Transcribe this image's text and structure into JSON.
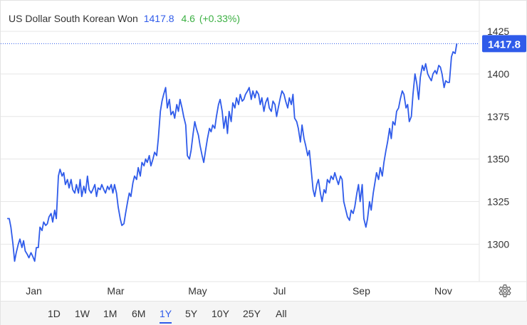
{
  "header": {
    "title": "US Dollar South Korean Won",
    "price": "1417.8",
    "change": "4.6",
    "change_pct": "(+0.33%)"
  },
  "colors": {
    "line": "#2f5bea",
    "positive": "#3cb043",
    "grid": "#e6e6e6",
    "axis_text": "#333333",
    "price_badge": "#2f5bea"
  },
  "range_buttons": [
    {
      "label": "1D"
    },
    {
      "label": "1W"
    },
    {
      "label": "1M"
    },
    {
      "label": "6M"
    },
    {
      "label": "1Y",
      "active": true
    },
    {
      "label": "5Y"
    },
    {
      "label": "10Y"
    },
    {
      "label": "25Y"
    },
    {
      "label": "All"
    }
  ],
  "settings_icon": "gear-icon",
  "chart_data": {
    "type": "line",
    "title": "",
    "xlabel": "",
    "ylabel": "",
    "y_ticks": [
      1300,
      1325,
      1350,
      1375,
      1400,
      1425
    ],
    "x_tick_labels": [
      "Jan",
      "Mar",
      "May",
      "Jul",
      "Sep",
      "Nov"
    ],
    "x_tick_month_index": [
      0.67,
      2.67,
      4.67,
      6.67,
      8.67,
      10.67
    ],
    "ylim": [
      1278,
      1443
    ],
    "xlim_month_index": [
      0.0,
      11.55
    ],
    "grid": "horizontal",
    "last_value_label": "1417.8",
    "last_value": 1417.8,
    "series": [
      {
        "values": [
          [
            0.02,
            1315
          ],
          [
            0.07,
            1315
          ],
          [
            0.11,
            1310
          ],
          [
            0.16,
            1300
          ],
          [
            0.2,
            1290
          ],
          [
            0.24,
            1295
          ],
          [
            0.29,
            1300
          ],
          [
            0.33,
            1303
          ],
          [
            0.38,
            1298
          ],
          [
            0.42,
            1302
          ],
          [
            0.46,
            1296
          ],
          [
            0.51,
            1294
          ],
          [
            0.55,
            1292
          ],
          [
            0.6,
            1295
          ],
          [
            0.64,
            1293
          ],
          [
            0.69,
            1290
          ],
          [
            0.73,
            1298
          ],
          [
            0.78,
            1298
          ],
          [
            0.82,
            1310
          ],
          [
            0.87,
            1308
          ],
          [
            0.91,
            1313
          ],
          [
            0.96,
            1311
          ],
          [
            1.0,
            1312
          ],
          [
            1.04,
            1316
          ],
          [
            1.09,
            1318
          ],
          [
            1.13,
            1313
          ],
          [
            1.18,
            1320
          ],
          [
            1.22,
            1315
          ],
          [
            1.27,
            1340
          ],
          [
            1.31,
            1344
          ],
          [
            1.36,
            1340
          ],
          [
            1.4,
            1342
          ],
          [
            1.44,
            1335
          ],
          [
            1.49,
            1338
          ],
          [
            1.53,
            1333
          ],
          [
            1.58,
            1338
          ],
          [
            1.62,
            1332
          ],
          [
            1.67,
            1330
          ],
          [
            1.71,
            1335
          ],
          [
            1.76,
            1330
          ],
          [
            1.8,
            1338
          ],
          [
            1.84,
            1328
          ],
          [
            1.89,
            1334
          ],
          [
            1.93,
            1330
          ],
          [
            1.98,
            1340
          ],
          [
            2.02,
            1332
          ],
          [
            2.07,
            1330
          ],
          [
            2.11,
            1332
          ],
          [
            2.16,
            1335
          ],
          [
            2.2,
            1328
          ],
          [
            2.24,
            1333
          ],
          [
            2.29,
            1332
          ],
          [
            2.33,
            1335
          ],
          [
            2.38,
            1332
          ],
          [
            2.42,
            1330
          ],
          [
            2.47,
            1334
          ],
          [
            2.51,
            1332
          ],
          [
            2.56,
            1335
          ],
          [
            2.6,
            1330
          ],
          [
            2.64,
            1335
          ],
          [
            2.69,
            1330
          ],
          [
            2.73,
            1322
          ],
          [
            2.78,
            1315
          ],
          [
            2.82,
            1311
          ],
          [
            2.87,
            1312
          ],
          [
            2.91,
            1318
          ],
          [
            2.96,
            1325
          ],
          [
            3.0,
            1330
          ],
          [
            3.04,
            1328
          ],
          [
            3.09,
            1336
          ],
          [
            3.13,
            1340
          ],
          [
            3.18,
            1338
          ],
          [
            3.22,
            1345
          ],
          [
            3.27,
            1340
          ],
          [
            3.31,
            1348
          ],
          [
            3.36,
            1346
          ],
          [
            3.4,
            1350
          ],
          [
            3.44,
            1348
          ],
          [
            3.49,
            1352
          ],
          [
            3.53,
            1346
          ],
          [
            3.58,
            1350
          ],
          [
            3.62,
            1354
          ],
          [
            3.67,
            1352
          ],
          [
            3.71,
            1362
          ],
          [
            3.76,
            1378
          ],
          [
            3.8,
            1384
          ],
          [
            3.84,
            1388
          ],
          [
            3.89,
            1392
          ],
          [
            3.93,
            1380
          ],
          [
            3.98,
            1385
          ],
          [
            4.02,
            1376
          ],
          [
            4.07,
            1378
          ],
          [
            4.11,
            1374
          ],
          [
            4.16,
            1382
          ],
          [
            4.2,
            1378
          ],
          [
            4.24,
            1385
          ],
          [
            4.29,
            1380
          ],
          [
            4.33,
            1375
          ],
          [
            4.38,
            1370
          ],
          [
            4.42,
            1352
          ],
          [
            4.47,
            1350
          ],
          [
            4.51,
            1355
          ],
          [
            4.56,
            1365
          ],
          [
            4.6,
            1372
          ],
          [
            4.64,
            1368
          ],
          [
            4.69,
            1364
          ],
          [
            4.73,
            1358
          ],
          [
            4.78,
            1352
          ],
          [
            4.82,
            1348
          ],
          [
            4.87,
            1356
          ],
          [
            4.91,
            1362
          ],
          [
            4.96,
            1368
          ],
          [
            5.0,
            1366
          ],
          [
            5.04,
            1370
          ],
          [
            5.09,
            1368
          ],
          [
            5.13,
            1375
          ],
          [
            5.18,
            1382
          ],
          [
            5.22,
            1385
          ],
          [
            5.27,
            1378
          ],
          [
            5.31,
            1368
          ],
          [
            5.36,
            1375
          ],
          [
            5.4,
            1365
          ],
          [
            5.44,
            1378
          ],
          [
            5.49,
            1372
          ],
          [
            5.53,
            1383
          ],
          [
            5.58,
            1380
          ],
          [
            5.62,
            1386
          ],
          [
            5.67,
            1382
          ],
          [
            5.71,
            1388
          ],
          [
            5.76,
            1384
          ],
          [
            5.8,
            1385
          ],
          [
            5.84,
            1388
          ],
          [
            5.89,
            1390
          ],
          [
            5.93,
            1392
          ],
          [
            5.98,
            1385
          ],
          [
            6.02,
            1390
          ],
          [
            6.07,
            1386
          ],
          [
            6.11,
            1390
          ],
          [
            6.16,
            1388
          ],
          [
            6.2,
            1382
          ],
          [
            6.24,
            1386
          ],
          [
            6.29,
            1378
          ],
          [
            6.33,
            1383
          ],
          [
            6.38,
            1386
          ],
          [
            6.42,
            1380
          ],
          [
            6.47,
            1378
          ],
          [
            6.51,
            1384
          ],
          [
            6.56,
            1382
          ],
          [
            6.6,
            1375
          ],
          [
            6.64,
            1380
          ],
          [
            6.69,
            1386
          ],
          [
            6.73,
            1390
          ],
          [
            6.78,
            1388
          ],
          [
            6.82,
            1384
          ],
          [
            6.87,
            1380
          ],
          [
            6.91,
            1386
          ],
          [
            6.96,
            1382
          ],
          [
            7.0,
            1388
          ],
          [
            7.04,
            1374
          ],
          [
            7.09,
            1372
          ],
          [
            7.13,
            1368
          ],
          [
            7.18,
            1360
          ],
          [
            7.22,
            1370
          ],
          [
            7.27,
            1362
          ],
          [
            7.31,
            1358
          ],
          [
            7.36,
            1352
          ],
          [
            7.4,
            1355
          ],
          [
            7.44,
            1345
          ],
          [
            7.49,
            1332
          ],
          [
            7.53,
            1328
          ],
          [
            7.58,
            1335
          ],
          [
            7.62,
            1338
          ],
          [
            7.67,
            1330
          ],
          [
            7.71,
            1325
          ],
          [
            7.76,
            1332
          ],
          [
            7.8,
            1330
          ],
          [
            7.84,
            1338
          ],
          [
            7.89,
            1336
          ],
          [
            7.93,
            1340
          ],
          [
            7.98,
            1338
          ],
          [
            8.02,
            1342
          ],
          [
            8.07,
            1338
          ],
          [
            8.11,
            1335
          ],
          [
            8.16,
            1340
          ],
          [
            8.2,
            1338
          ],
          [
            8.24,
            1325
          ],
          [
            8.29,
            1320
          ],
          [
            8.33,
            1316
          ],
          [
            8.38,
            1314
          ],
          [
            8.42,
            1320
          ],
          [
            8.47,
            1318
          ],
          [
            8.51,
            1322
          ],
          [
            8.56,
            1330
          ],
          [
            8.6,
            1335
          ],
          [
            8.64,
            1325
          ],
          [
            8.69,
            1335
          ],
          [
            8.73,
            1315
          ],
          [
            8.78,
            1310
          ],
          [
            8.82,
            1315
          ],
          [
            8.87,
            1325
          ],
          [
            8.91,
            1320
          ],
          [
            8.96,
            1330
          ],
          [
            9.0,
            1336
          ],
          [
            9.04,
            1342
          ],
          [
            9.09,
            1338
          ],
          [
            9.13,
            1345
          ],
          [
            9.18,
            1340
          ],
          [
            9.22,
            1348
          ],
          [
            9.27,
            1355
          ],
          [
            9.31,
            1360
          ],
          [
            9.36,
            1368
          ],
          [
            9.4,
            1362
          ],
          [
            9.44,
            1372
          ],
          [
            9.49,
            1370
          ],
          [
            9.53,
            1378
          ],
          [
            9.58,
            1380
          ],
          [
            9.62,
            1385
          ],
          [
            9.67,
            1390
          ],
          [
            9.71,
            1388
          ],
          [
            9.76,
            1380
          ],
          [
            9.8,
            1382
          ],
          [
            9.84,
            1372
          ],
          [
            9.89,
            1375
          ],
          [
            9.93,
            1388
          ],
          [
            9.98,
            1400
          ],
          [
            10.02,
            1395
          ],
          [
            10.07,
            1385
          ],
          [
            10.11,
            1398
          ],
          [
            10.16,
            1405
          ],
          [
            10.2,
            1402
          ],
          [
            10.24,
            1406
          ],
          [
            10.29,
            1400
          ],
          [
            10.33,
            1398
          ],
          [
            10.38,
            1396
          ],
          [
            10.42,
            1400
          ],
          [
            10.47,
            1402
          ],
          [
            10.51,
            1400
          ],
          [
            10.56,
            1405
          ],
          [
            10.6,
            1404
          ],
          [
            10.64,
            1400
          ],
          [
            10.69,
            1392
          ],
          [
            10.73,
            1396
          ],
          [
            10.78,
            1395
          ],
          [
            10.82,
            1395
          ],
          [
            10.87,
            1410
          ],
          [
            10.91,
            1413
          ],
          [
            10.96,
            1412
          ],
          [
            11.0,
            1417.8
          ]
        ]
      }
    ]
  }
}
